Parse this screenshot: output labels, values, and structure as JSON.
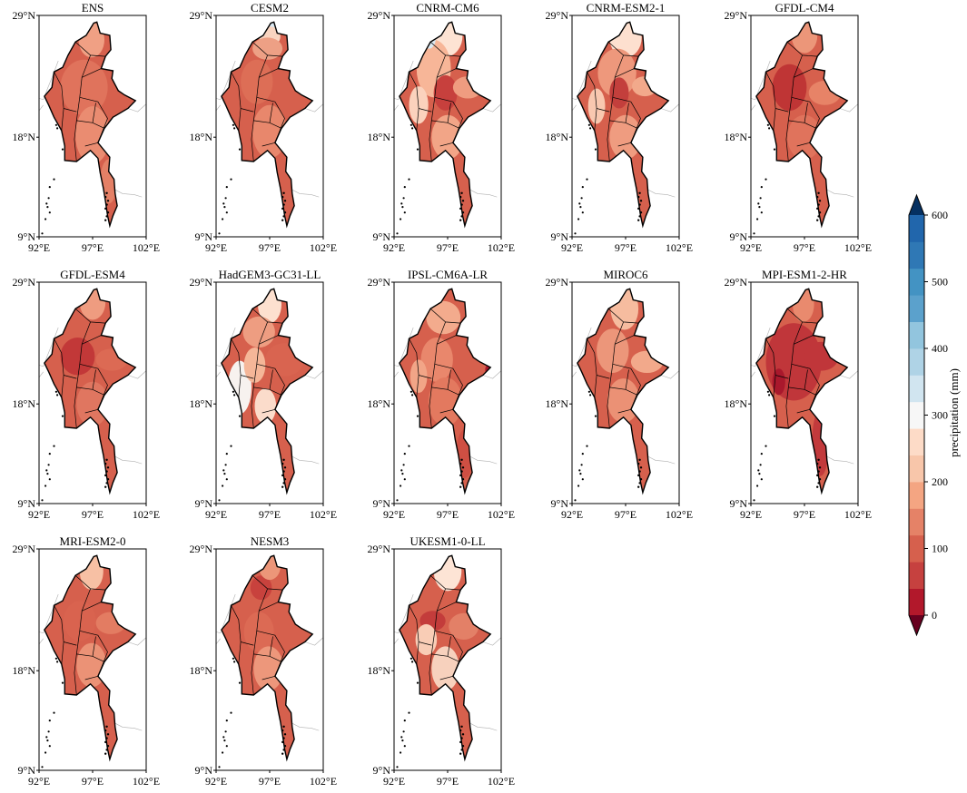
{
  "figure": {
    "panels": [
      {
        "title": "ENS",
        "pattern": "ens"
      },
      {
        "title": "CESM2",
        "pattern": "cesm"
      },
      {
        "title": "CNRM-CM6",
        "pattern": "cnrm"
      },
      {
        "title": "CNRM-ESM2-1",
        "pattern": "cnrm2"
      },
      {
        "title": "GFDL-CM4",
        "pattern": "gfdl"
      },
      {
        "title": "GFDL-ESM4",
        "pattern": "gfdl2"
      },
      {
        "title": "HadGEM3-GC31-LL",
        "pattern": "hadgem"
      },
      {
        "title": "IPSL-CM6A-LR",
        "pattern": "ipsl"
      },
      {
        "title": "MIROC6",
        "pattern": "miroc"
      },
      {
        "title": "MPI-ESM1-2-HR",
        "pattern": "mpi"
      },
      {
        "title": "MRI-ESM2-0",
        "pattern": "mri"
      },
      {
        "title": "NESM3",
        "pattern": "nesm"
      },
      {
        "title": "UKESM1-0-LL",
        "pattern": "ukesm"
      }
    ],
    "y_ticks": [
      "29°N",
      "18°N",
      "9°N"
    ],
    "x_ticks": [
      "92°E",
      "97°E",
      "102°E"
    ],
    "colorbar": {
      "label": "precipitation (mm)",
      "ticks": [
        "0",
        "100",
        "200",
        "300",
        "400",
        "500",
        "600"
      ],
      "min": 0,
      "max": 600,
      "step": 50,
      "colors": [
        "#b2182b",
        "#c6413f",
        "#d6604d",
        "#e58267",
        "#f4a582",
        "#f8c6aa",
        "#fddbc7",
        "#f7f7f7",
        "#d1e5f0",
        "#afd3e6",
        "#92c5de",
        "#5ba1cc",
        "#4393c3",
        "#2f78b5",
        "#2166ac"
      ],
      "extend_low_color": "#67001f",
      "extend_high_color": "#053061"
    }
  }
}
